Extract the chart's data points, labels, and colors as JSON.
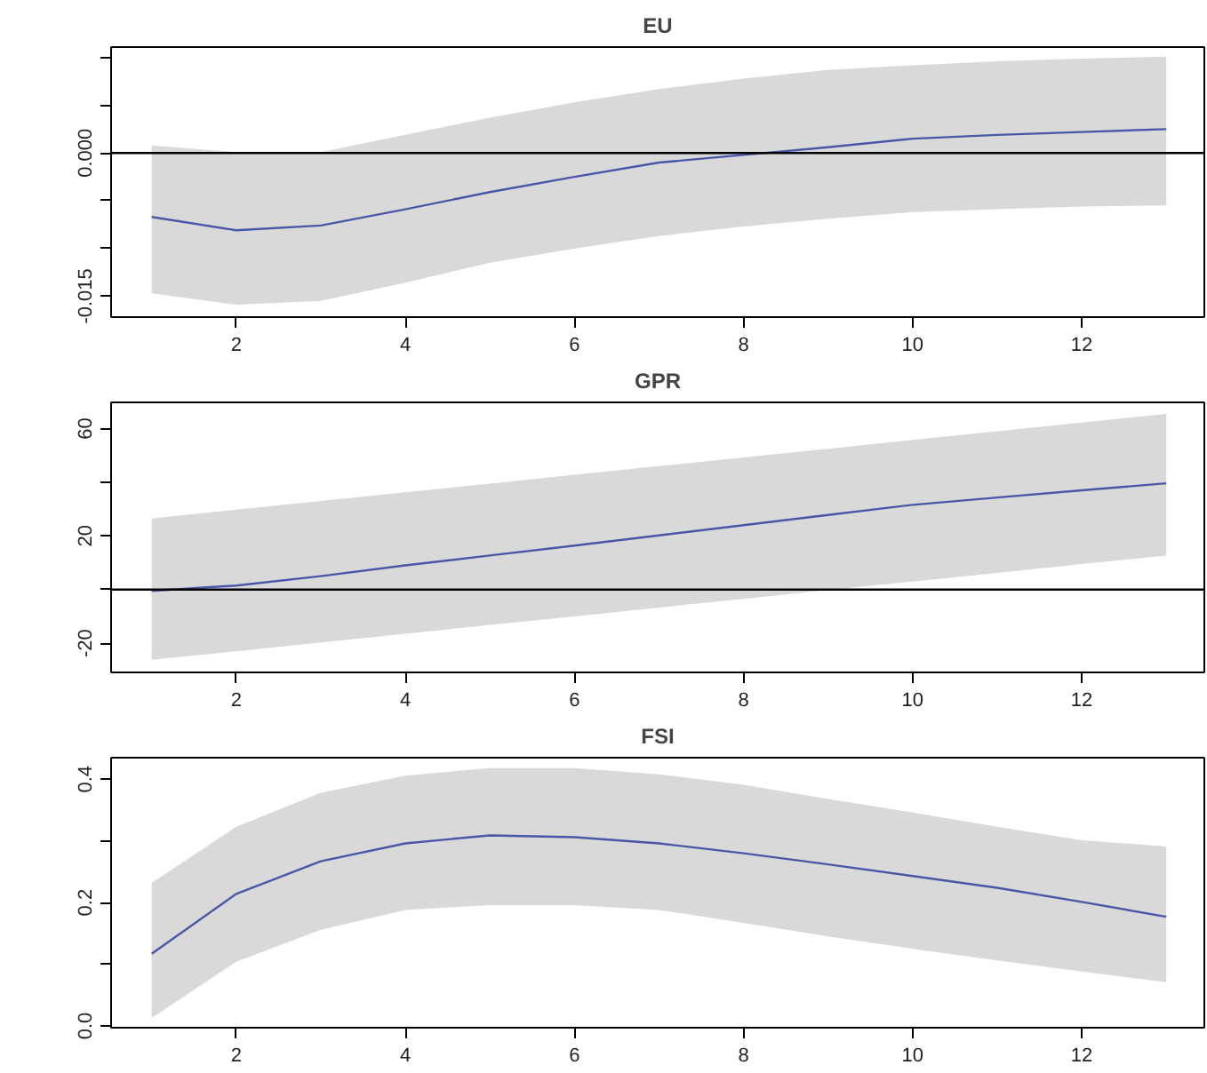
{
  "chart_data": [
    {
      "type": "line",
      "title": "EU",
      "x": [
        1,
        2,
        3,
        4,
        5,
        6,
        7,
        8,
        9,
        10,
        11,
        12,
        13
      ],
      "xlim": [
        0.52,
        13.45
      ],
      "xticks": [
        2,
        4,
        6,
        8,
        10,
        12
      ],
      "ylim": [
        -0.0172,
        0.0111
      ],
      "yticks": [
        {
          "value": 0.01,
          "label": null
        },
        {
          "value": 0.005,
          "label": null
        },
        {
          "value": 0.0,
          "label": "0.000"
        },
        {
          "value": -0.005,
          "label": null
        },
        {
          "value": -0.01,
          "label": null
        },
        {
          "value": -0.015,
          "label": "-0.015"
        }
      ],
      "grid": false,
      "ref_lines": [
        {
          "axis": "y",
          "value": 0,
          "color": "#000000"
        }
      ],
      "series": [
        {
          "color": "#4a56a6",
          "values": [
            -0.0067,
            -0.0081,
            -0.0076,
            -0.0059,
            -0.0041,
            -0.0025,
            -0.001,
            -0.0002,
            0.0006,
            0.0015,
            0.0019,
            0.0022,
            0.0025
          ],
          "upper": [
            0.0008,
            0.0001,
            0.0001,
            0.0019,
            0.0037,
            0.0053,
            0.0067,
            0.0078,
            0.0087,
            0.0092,
            0.0096,
            0.0099,
            0.0101
          ],
          "lower": [
            -0.0147,
            -0.0159,
            -0.0155,
            -0.0136,
            -0.0115,
            -0.01,
            -0.0087,
            -0.0077,
            -0.0069,
            -0.0062,
            -0.0059,
            -0.0056,
            -0.0055
          ]
        }
      ]
    },
    {
      "type": "line",
      "title": "GPR",
      "x": [
        1,
        2,
        3,
        4,
        5,
        6,
        7,
        8,
        9,
        10,
        11,
        12,
        13
      ],
      "xlim": [
        0.52,
        13.45
      ],
      "xticks": [
        2,
        4,
        6,
        8,
        10,
        12
      ],
      "ylim": [
        -30.9,
        69.8
      ],
      "yticks": [
        60,
        {
          "value": 40,
          "label": null
        },
        20,
        {
          "value": 0,
          "label": null
        },
        -20
      ],
      "grid": false,
      "ref_lines": [
        {
          "axis": "y",
          "value": 0,
          "color": "#000000"
        }
      ],
      "series": [
        {
          "color": "#4a56a6",
          "values": [
            -0.5,
            1.5,
            5,
            9,
            12.7,
            16.4,
            20.2,
            24,
            27.8,
            31.6,
            34.3,
            37,
            39.6
          ],
          "upper": [
            26.5,
            29.8,
            33,
            36.3,
            39.5,
            42.8,
            46,
            49.3,
            52.5,
            55.8,
            59,
            62.3,
            65.5
          ],
          "lower": [
            -26.2,
            -23,
            -19.7,
            -16.5,
            -13.2,
            -10,
            -6.7,
            -3.5,
            -0.2,
            3,
            6.2,
            9.5,
            12.7
          ]
        }
      ]
    },
    {
      "type": "line",
      "title": "FSI",
      "x": [
        1,
        2,
        3,
        4,
        5,
        6,
        7,
        8,
        9,
        10,
        11,
        12,
        13
      ],
      "xlim": [
        0.52,
        13.45
      ],
      "xticks": [
        2,
        4,
        6,
        8,
        10,
        12
      ],
      "ylim": [
        -0.003,
        0.435
      ],
      "yticks": [
        {
          "value": 0.0,
          "label": "0.0"
        },
        {
          "value": 0.1,
          "label": null
        },
        {
          "value": 0.2,
          "label": "0.2"
        },
        {
          "value": 0.3,
          "label": null
        },
        {
          "value": 0.4,
          "label": "0.4"
        }
      ],
      "grid": false,
      "series": [
        {
          "color": "#4a56a6",
          "values": [
            0.117,
            0.214,
            0.267,
            0.296,
            0.309,
            0.306,
            0.296,
            0.28,
            0.262,
            0.243,
            0.224,
            0.201,
            0.177
          ],
          "upper": [
            0.232,
            0.323,
            0.378,
            0.406,
            0.418,
            0.418,
            0.408,
            0.391,
            0.368,
            0.346,
            0.323,
            0.301,
            0.291
          ],
          "lower": [
            0.013,
            0.104,
            0.156,
            0.188,
            0.196,
            0.196,
            0.188,
            0.167,
            0.145,
            0.125,
            0.106,
            0.088,
            0.071
          ]
        }
      ]
    }
  ]
}
